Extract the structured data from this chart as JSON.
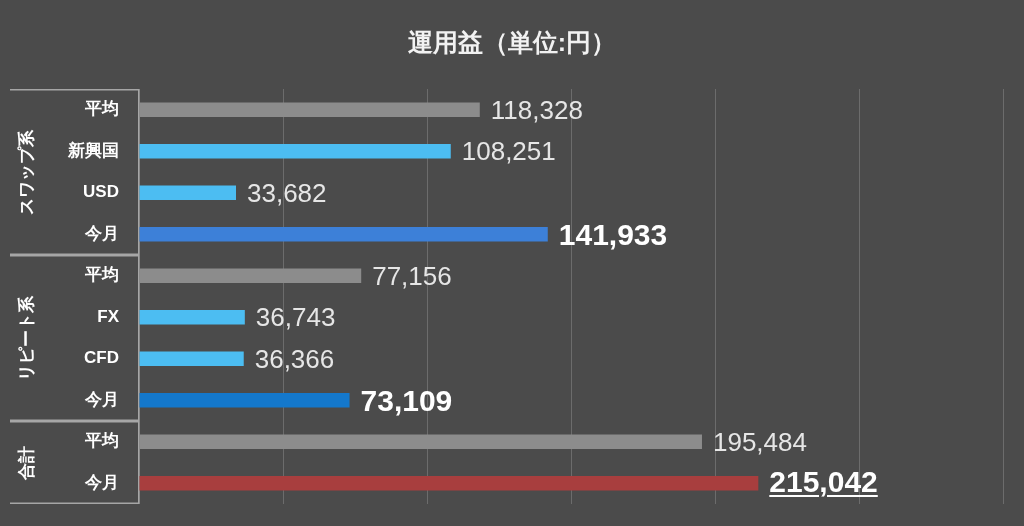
{
  "chart_data": [
    {
      "type": "bar",
      "orientation": "horizontal",
      "title": "運用益（単位:円）",
      "ylabel": "スワップ系",
      "categories": [
        "平均",
        "新興国",
        "USD",
        "今月"
      ],
      "values": [
        118328,
        108251,
        33682,
        141933
      ],
      "value_labels": [
        "118,328",
        "108,251",
        "33,682",
        "141,933"
      ],
      "colors": [
        "#8c8c8c",
        "#4cbdf2",
        "#4cbdf2",
        "#3d80d8"
      ],
      "xlim": [
        0,
        300000
      ],
      "xticks": [
        {
          "value": 0,
          "label": null
        },
        {
          "value": 50000,
          "label": null
        },
        {
          "value": 100000,
          "label": null
        },
        {
          "value": 150000,
          "label": null
        },
        {
          "value": 200000,
          "label": null
        },
        {
          "value": 250000,
          "label": null
        },
        {
          "value": 300000,
          "label": null
        }
      ],
      "grid": "x",
      "tick_labels": "y"
    },
    {
      "type": "bar",
      "orientation": "horizontal",
      "ylabel": "リピート系",
      "categories": [
        "平均",
        "FX",
        "CFD",
        "今月"
      ],
      "values": [
        77156,
        36743,
        36366,
        73109
      ],
      "value_labels": [
        "77,156",
        "36,743",
        "36,366",
        "73,109"
      ],
      "colors": [
        "#8c8c8c",
        "#4cbdf2",
        "#4cbdf2",
        "#1478cc"
      ],
      "xlim": [
        0,
        300000
      ],
      "xticks": [
        {
          "value": 0,
          "label": null
        },
        {
          "value": 50000,
          "label": null
        },
        {
          "value": 100000,
          "label": null
        },
        {
          "value": 150000,
          "label": null
        },
        {
          "value": 200000,
          "label": null
        },
        {
          "value": 250000,
          "label": null
        },
        {
          "value": 300000,
          "label": null
        }
      ],
      "grid": "x",
      "tick_labels": "y"
    },
    {
      "type": "bar",
      "orientation": "horizontal",
      "ylabel": "合計",
      "categories": [
        "平均",
        "今月"
      ],
      "values": [
        195484,
        215042
      ],
      "value_labels": [
        "195,484",
        "215,042"
      ],
      "colors": [
        "#8c8c8c",
        "#a83e3e"
      ],
      "xlim": [
        0,
        300000
      ],
      "xticks": [
        {
          "value": 0,
          "label": null
        },
        {
          "value": 50000,
          "label": null
        },
        {
          "value": 100000,
          "label": null
        },
        {
          "value": 150000,
          "label": null
        },
        {
          "value": 200000,
          "label": null
        },
        {
          "value": 250000,
          "label": null
        },
        {
          "value": 300000,
          "label": null
        }
      ],
      "grid": "x",
      "tick_labels": "y"
    }
  ]
}
